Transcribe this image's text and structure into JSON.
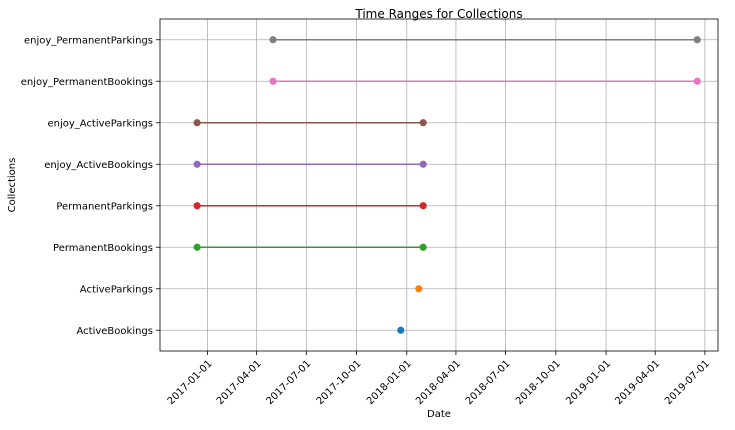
{
  "chart_data": {
    "type": "line",
    "title": "Time Ranges for Collections",
    "xlabel": "Date",
    "ylabel": "Collections",
    "x_ticks": [
      "2017-01-01",
      "2017-04-01",
      "2017-07-01",
      "2017-10-01",
      "2018-01-01",
      "2018-04-01",
      "2018-07-01",
      "2018-10-01",
      "2019-01-01",
      "2019-04-01",
      "2019-07-01"
    ],
    "xlim": [
      "2016-10-06",
      "2019-07-25"
    ],
    "grid": true,
    "legend": "none",
    "categories": [
      "ActiveBookings",
      "ActiveParkings",
      "PermanentBookings",
      "PermanentParkings",
      "enjoy_ActiveBookings",
      "enjoy_ActiveParkings",
      "enjoy_PermanentBookings",
      "enjoy_PermanentParkings"
    ],
    "series": [
      {
        "category": "ActiveBookings",
        "start": "2017-12-21",
        "end": "2017-12-21",
        "color": "#1f77b4"
      },
      {
        "category": "ActiveParkings",
        "start": "2018-01-23",
        "end": "2018-01-23",
        "color": "#ff7f0e"
      },
      {
        "category": "PermanentBookings",
        "start": "2016-12-13",
        "end": "2018-01-31",
        "color": "#2ca02c"
      },
      {
        "category": "PermanentParkings",
        "start": "2016-12-13",
        "end": "2018-01-31",
        "color": "#d62728"
      },
      {
        "category": "enjoy_ActiveBookings",
        "start": "2016-12-13",
        "end": "2018-01-31",
        "color": "#9467bd"
      },
      {
        "category": "enjoy_ActiveParkings",
        "start": "2016-12-13",
        "end": "2018-01-31",
        "color": "#8c564b"
      },
      {
        "category": "enjoy_PermanentBookings",
        "start": "2017-05-01",
        "end": "2019-06-17",
        "color": "#e377c2"
      },
      {
        "category": "enjoy_PermanentParkings",
        "start": "2017-05-01",
        "end": "2019-06-17",
        "color": "#7f7f7f"
      }
    ]
  }
}
